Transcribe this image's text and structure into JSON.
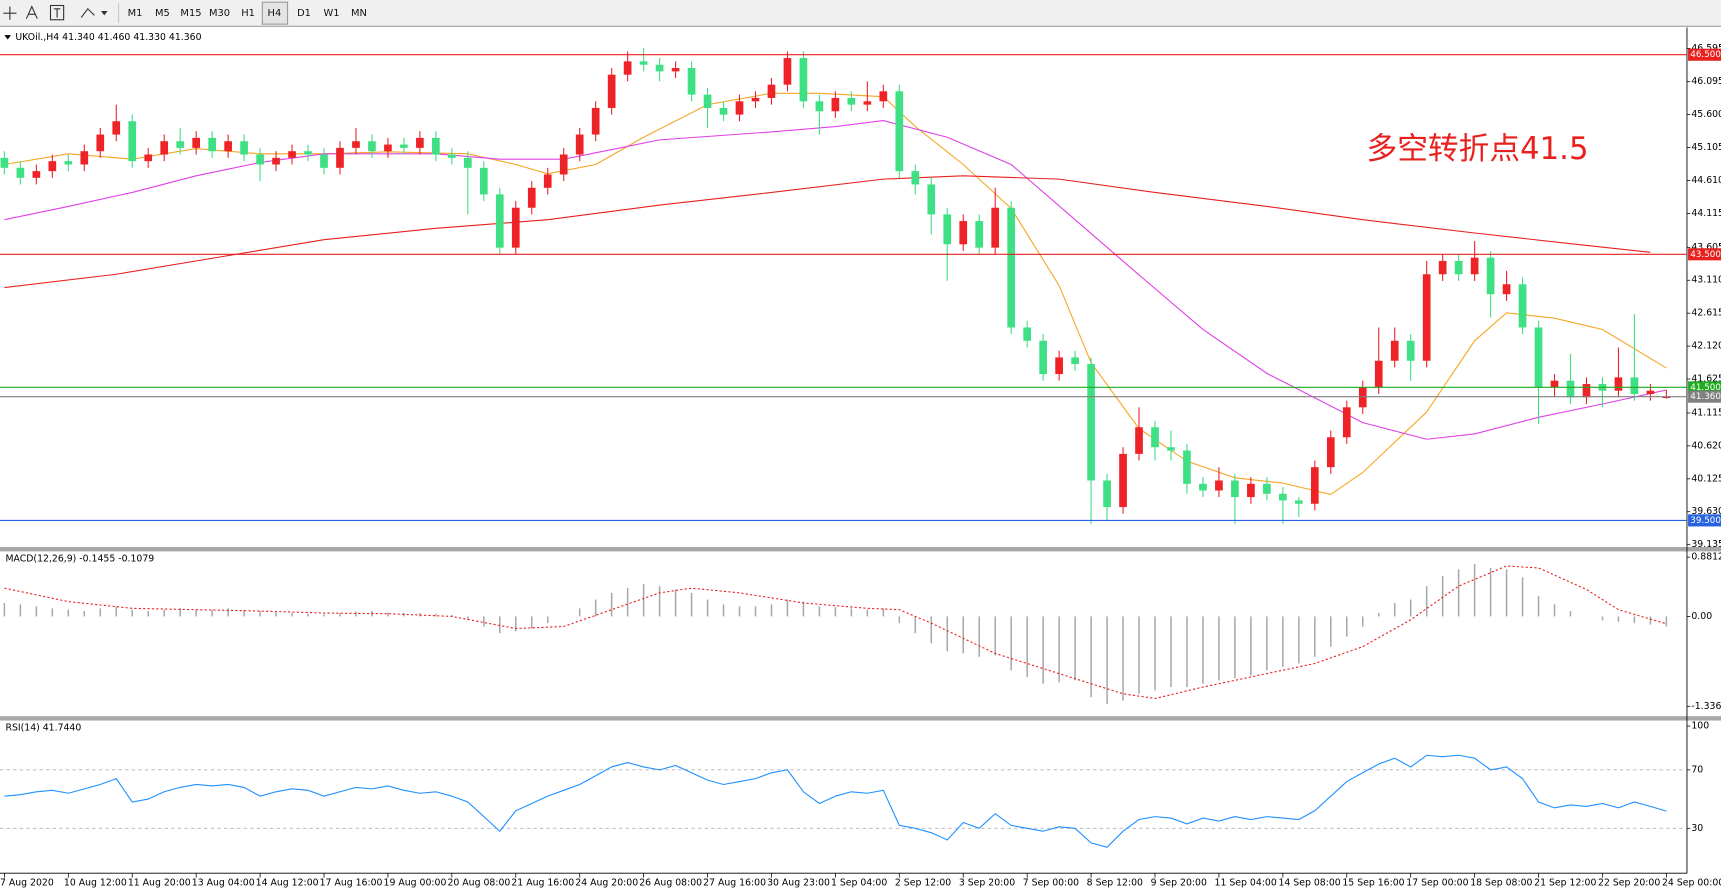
{
  "toolbar": {
    "timeframes": [
      "M1",
      "M5",
      "M15",
      "M30",
      "H1",
      "H4",
      "D1",
      "W1",
      "MN"
    ]
  },
  "chart_data": [
    {
      "type": "candlestick",
      "title": "UKOil.,H4  41.340 41.460 41.330 41.360",
      "annotation": "多空转折点41.5",
      "categories": [
        "7 Aug 2020",
        null,
        null,
        null,
        "10 Aug 12:00",
        null,
        null,
        null,
        "11 Aug 20:00",
        null,
        null,
        null,
        "13 Aug 04:00",
        null,
        null,
        null,
        "14 Aug 12:00",
        null,
        null,
        null,
        "17 Aug 16:00",
        null,
        null,
        null,
        "19 Aug 00:00",
        null,
        null,
        null,
        "20 Aug 08:00",
        null,
        null,
        null,
        "21 Aug 16:00",
        null,
        null,
        null,
        "24 Aug 20:00",
        null,
        null,
        null,
        "26 Aug 08:00",
        null,
        null,
        null,
        "27 Aug 16:00",
        null,
        null,
        null,
        "30 Aug 23:00",
        null,
        null,
        null,
        "1 Sep 04:00",
        null,
        null,
        null,
        "2 Sep 12:00",
        null,
        null,
        null,
        "3 Sep 20:00",
        null,
        null,
        null,
        "7 Sep 00:00",
        null,
        null,
        null,
        "8 Sep 12:00",
        null,
        null,
        null,
        "9 Sep 20:00",
        null,
        null,
        null,
        "11 Sep 04:00",
        null,
        null,
        null,
        "14 Sep 08:00",
        null,
        null,
        null,
        "15 Sep 16:00",
        null,
        null,
        null,
        "17 Sep 00:00",
        null,
        null,
        null,
        "18 Sep 08:00",
        null,
        null,
        null,
        "21 Sep 12:00",
        null,
        null,
        null,
        "22 Sep 20:00",
        null,
        null,
        null,
        "24 Sep 00:00"
      ],
      "open": [
        44.95,
        44.8,
        44.65,
        44.75,
        44.9,
        44.85,
        45.05,
        45.3,
        45.5,
        44.9,
        45.0,
        45.2,
        45.1,
        45.25,
        45.05,
        45.2,
        45.0,
        44.85,
        44.95,
        45.05,
        45.0,
        44.8,
        45.1,
        45.2,
        45.05,
        45.15,
        45.1,
        45.25,
        45.0,
        44.95,
        44.8,
        44.4,
        43.6,
        44.2,
        44.5,
        44.7,
        45.0,
        45.3,
        45.7,
        46.2,
        46.4,
        46.35,
        46.25,
        46.3,
        45.9,
        45.7,
        45.6,
        45.8,
        45.85,
        46.05,
        46.45,
        45.8,
        45.65,
        45.85,
        45.75,
        45.8,
        45.95,
        44.75,
        44.55,
        44.1,
        43.65,
        44.0,
        43.6,
        44.2,
        42.4,
        42.2,
        41.7,
        41.95,
        41.85,
        40.1,
        39.7,
        40.5,
        40.9,
        40.6,
        40.55,
        40.05,
        39.95,
        40.1,
        39.85,
        40.05,
        39.9,
        39.8,
        39.75,
        40.3,
        40.75,
        41.2,
        41.5,
        41.9,
        42.2,
        41.9,
        43.2,
        43.4,
        43.2,
        43.45,
        42.9,
        43.05,
        42.4,
        41.5,
        41.6,
        41.35,
        41.55,
        41.45,
        41.65,
        41.4,
        41.34
      ],
      "high": [
        45.05,
        44.9,
        44.85,
        45.0,
        45.0,
        45.15,
        45.4,
        45.75,
        45.6,
        45.1,
        45.3,
        45.4,
        45.35,
        45.35,
        45.3,
        45.3,
        45.1,
        45.05,
        45.15,
        45.15,
        45.1,
        45.2,
        45.4,
        45.3,
        45.25,
        45.25,
        45.35,
        45.35,
        45.1,
        45.05,
        44.9,
        44.5,
        44.3,
        44.6,
        44.8,
        45.1,
        45.4,
        45.8,
        46.3,
        46.55,
        46.6,
        46.45,
        46.4,
        46.4,
        46.0,
        45.8,
        45.9,
        45.95,
        46.15,
        46.55,
        46.55,
        45.9,
        45.95,
        45.95,
        46.1,
        46.05,
        46.05,
        44.85,
        44.65,
        44.2,
        44.1,
        44.1,
        44.5,
        44.3,
        42.5,
        42.3,
        42.05,
        42.05,
        41.95,
        40.2,
        40.6,
        41.2,
        41.0,
        40.85,
        40.65,
        40.15,
        40.3,
        40.2,
        40.15,
        40.15,
        40.0,
        39.85,
        40.4,
        40.85,
        41.3,
        41.6,
        42.4,
        42.4,
        42.3,
        43.4,
        43.5,
        43.5,
        43.7,
        43.55,
        43.25,
        43.15,
        42.5,
        41.7,
        42.0,
        41.65,
        41.65,
        42.1,
        42.6,
        41.55,
        41.46
      ],
      "low": [
        44.7,
        44.55,
        44.55,
        44.65,
        44.75,
        44.75,
        44.95,
        45.2,
        44.8,
        44.8,
        44.9,
        45.0,
        45.0,
        44.95,
        44.95,
        44.9,
        44.6,
        44.75,
        44.85,
        44.9,
        44.7,
        44.7,
        45.0,
        44.95,
        44.95,
        45.0,
        45.0,
        44.9,
        44.85,
        44.1,
        44.3,
        43.5,
        43.5,
        44.1,
        44.4,
        44.6,
        44.9,
        45.2,
        45.6,
        46.1,
        46.25,
        46.1,
        46.15,
        45.8,
        45.4,
        45.5,
        45.5,
        45.7,
        45.75,
        45.95,
        45.7,
        45.3,
        45.55,
        45.65,
        45.65,
        45.7,
        44.65,
        44.4,
        43.8,
        43.1,
        43.55,
        43.5,
        43.5,
        42.3,
        42.1,
        41.6,
        41.6,
        41.75,
        39.45,
        39.5,
        39.6,
        40.4,
        40.4,
        40.4,
        39.9,
        39.85,
        39.85,
        39.45,
        39.75,
        39.8,
        39.45,
        39.55,
        39.65,
        40.2,
        40.65,
        41.1,
        41.4,
        41.8,
        41.6,
        41.8,
        43.1,
        43.1,
        43.1,
        42.55,
        42.8,
        42.3,
        40.95,
        41.35,
        41.25,
        41.25,
        41.2,
        41.35,
        41.3,
        41.3,
        41.33
      ],
      "close": [
        44.8,
        44.65,
        44.75,
        44.9,
        44.85,
        45.05,
        45.3,
        45.5,
        44.9,
        45.0,
        45.2,
        45.1,
        45.25,
        45.05,
        45.2,
        45.0,
        44.85,
        44.95,
        45.05,
        45.0,
        44.8,
        45.1,
        45.2,
        45.05,
        45.15,
        45.1,
        45.25,
        45.0,
        44.95,
        44.8,
        44.4,
        43.6,
        44.2,
        44.5,
        44.7,
        45.0,
        45.3,
        45.7,
        46.2,
        46.4,
        46.35,
        46.25,
        46.3,
        45.9,
        45.7,
        45.6,
        45.8,
        45.85,
        46.05,
        46.45,
        45.8,
        45.65,
        45.85,
        45.75,
        45.8,
        45.95,
        44.75,
        44.55,
        44.1,
        43.65,
        44.0,
        43.6,
        44.2,
        42.4,
        42.2,
        41.7,
        41.95,
        41.85,
        40.1,
        39.7,
        40.5,
        40.9,
        40.6,
        40.55,
        40.05,
        39.95,
        40.1,
        39.85,
        40.05,
        39.9,
        39.8,
        39.75,
        40.3,
        40.75,
        41.2,
        41.5,
        41.9,
        42.2,
        41.9,
        43.2,
        43.4,
        43.2,
        43.45,
        42.9,
        43.05,
        42.4,
        41.5,
        41.6,
        41.35,
        41.55,
        41.45,
        41.65,
        41.4,
        41.45,
        41.36
      ],
      "up_color": "#ee2328",
      "down_color": "#3ee083",
      "moving_averages": [
        {
          "color": "#f5a623",
          "x": [
            0,
            4,
            8,
            12,
            16,
            20,
            24,
            29,
            32,
            34,
            37,
            40,
            44,
            48,
            51,
            55,
            57,
            60,
            63,
            66,
            68,
            71,
            74,
            77,
            80,
            83,
            85,
            89,
            92,
            94,
            97,
            100,
            104
          ],
          "values": [
            44.85,
            45.01,
            44.93,
            45.09,
            45.01,
            45.01,
            45.04,
            45.01,
            44.85,
            44.71,
            44.85,
            45.26,
            45.75,
            45.92,
            45.92,
            45.87,
            45.42,
            44.85,
            44.19,
            43.03,
            41.87,
            40.88,
            40.39,
            40.14,
            40.06,
            39.89,
            40.22,
            41.13,
            42.2,
            42.62,
            42.54,
            42.37,
            41.79
          ]
        },
        {
          "color": "#e040e8",
          "x": [
            0,
            4,
            8,
            12,
            16,
            20,
            27,
            31,
            35,
            41,
            48,
            52,
            55,
            59,
            63,
            67,
            71,
            75,
            79,
            83,
            85,
            89,
            92,
            96,
            100,
            104
          ],
          "values": [
            44.02,
            44.22,
            44.43,
            44.68,
            44.88,
            45.01,
            45.01,
            44.93,
            44.93,
            45.22,
            45.34,
            45.42,
            45.51,
            45.26,
            44.85,
            44.02,
            43.19,
            42.37,
            41.71,
            41.22,
            40.97,
            40.72,
            40.8,
            41.05,
            41.25,
            41.46
          ]
        },
        {
          "color": "#e8201e",
          "x": [
            0,
            7,
            14,
            20,
            27,
            34,
            41,
            48,
            55,
            60,
            66,
            72,
            79,
            85,
            92,
            98,
            103
          ],
          "values": [
            43.0,
            43.2,
            43.48,
            43.72,
            43.89,
            44.02,
            44.24,
            44.43,
            44.63,
            44.68,
            44.63,
            44.43,
            44.22,
            44.02,
            43.82,
            43.66,
            43.53
          ]
        }
      ],
      "levels": [
        {
          "value": 46.5,
          "label": "46.500",
          "color": "#e8201e"
        },
        {
          "value": 43.5,
          "label": "43.500",
          "color": "#e8201e"
        },
        {
          "value": 41.5,
          "label": "41.500",
          "color": "#1faa1f"
        },
        {
          "value": 39.5,
          "label": "39.500",
          "color": "#2563e0"
        }
      ],
      "price_line": {
        "value": 41.36,
        "label": "41.360",
        "color": "#808080"
      },
      "ylim": [
        39.1,
        46.91
      ],
      "yticks": [
        46.595,
        46.095,
        {
          "value": 45.6,
          "label": "45.600"
        },
        45.105,
        {
          "value": 44.61,
          "label": "44.610"
        },
        44.115,
        43.605,
        {
          "value": 43.11,
          "label": "43.110"
        },
        42.615,
        {
          "value": 42.12,
          "label": "42.120"
        },
        41.625,
        41.115,
        {
          "value": 40.62,
          "label": "40.620"
        },
        40.125,
        {
          "value": 39.63,
          "label": "39.630"
        },
        39.135
      ]
    },
    {
      "type": "macd",
      "title": "MACD(12,26,9) -0.1455 -0.1079",
      "values": [
        0.2,
        0.18,
        0.15,
        0.12,
        0.1,
        0.08,
        0.12,
        0.15,
        0.1,
        0.08,
        0.1,
        0.12,
        0.1,
        0.1,
        0.12,
        0.1,
        0.08,
        0.06,
        0.05,
        0.04,
        0.03,
        0.05,
        0.07,
        0.08,
        0.06,
        0.05,
        0.05,
        0.04,
        0.02,
        -0.05,
        -0.15,
        -0.25,
        -0.22,
        -0.18,
        -0.1,
        0.0,
        0.12,
        0.25,
        0.35,
        0.42,
        0.48,
        0.45,
        0.4,
        0.35,
        0.25,
        0.18,
        0.15,
        0.15,
        0.18,
        0.25,
        0.22,
        0.15,
        0.14,
        0.12,
        0.1,
        0.12,
        -0.1,
        -0.25,
        -0.4,
        -0.52,
        -0.55,
        -0.6,
        -0.58,
        -0.8,
        -0.9,
        -1.0,
        -0.98,
        -0.95,
        -1.2,
        -1.3,
        -1.25,
        -1.15,
        -1.1,
        -1.05,
        -1.05,
        -1.0,
        -0.95,
        -0.92,
        -0.88,
        -0.8,
        -0.75,
        -0.7,
        -0.6,
        -0.45,
        -0.3,
        -0.15,
        0.05,
        0.2,
        0.25,
        0.45,
        0.6,
        0.7,
        0.78,
        0.72,
        0.7,
        0.58,
        0.3,
        0.18,
        0.08,
        0.0,
        -0.06,
        -0.08,
        -0.1,
        -0.12,
        -0.15
      ],
      "color": "#a8a8a8",
      "signal": {
        "color": "#e8201e",
        "x": [
          0,
          4,
          8,
          12,
          16,
          20,
          24,
          28,
          32,
          35,
          38,
          41,
          43,
          46,
          50,
          54,
          56,
          58,
          62,
          66,
          70,
          72,
          75,
          78,
          82,
          85,
          88,
          91,
          94,
          96,
          99,
          101,
          104
        ],
        "values": [
          0.42,
          0.22,
          0.12,
          0.1,
          0.08,
          0.05,
          0.04,
          0.0,
          -0.18,
          -0.15,
          0.1,
          0.35,
          0.42,
          0.35,
          0.2,
          0.12,
          0.1,
          -0.1,
          -0.55,
          -0.85,
          -1.15,
          -1.22,
          -1.05,
          -0.9,
          -0.7,
          -0.45,
          -0.05,
          0.45,
          0.75,
          0.72,
          0.4,
          0.1,
          -0.11
        ]
      },
      "ylim": [
        -1.45,
        0.95
      ],
      "yticks": [
        0.8812,
        {
          "value": 0,
          "label": "0.00"
        },
        -1.3368
      ]
    },
    {
      "type": "line",
      "title": "RSI(14) 41.7440",
      "values": [
        52,
        53,
        55,
        56,
        54,
        57,
        60,
        64,
        48,
        50,
        55,
        58,
        60,
        59,
        60,
        58,
        52,
        55,
        57,
        56,
        52,
        55,
        58,
        57,
        59,
        56,
        54,
        55,
        52,
        48,
        38,
        28,
        42,
        47,
        52,
        56,
        60,
        66,
        72,
        75,
        72,
        70,
        73,
        68,
        63,
        60,
        62,
        64,
        68,
        70,
        55,
        47,
        52,
        55,
        54,
        56,
        32,
        30,
        27,
        22,
        34,
        30,
        40,
        32,
        30,
        28,
        31,
        30,
        20,
        17,
        28,
        36,
        38,
        37,
        33,
        37,
        35,
        38,
        36,
        38,
        37,
        36,
        42,
        52,
        62,
        68,
        74,
        78,
        72,
        80,
        79,
        80,
        78,
        70,
        72,
        64,
        48,
        44,
        46,
        45,
        47,
        44,
        48,
        45,
        41.744
      ],
      "color": "#1e90ff",
      "ylim": [
        0,
        100
      ],
      "yticks": [
        100,
        70,
        30
      ]
    }
  ]
}
